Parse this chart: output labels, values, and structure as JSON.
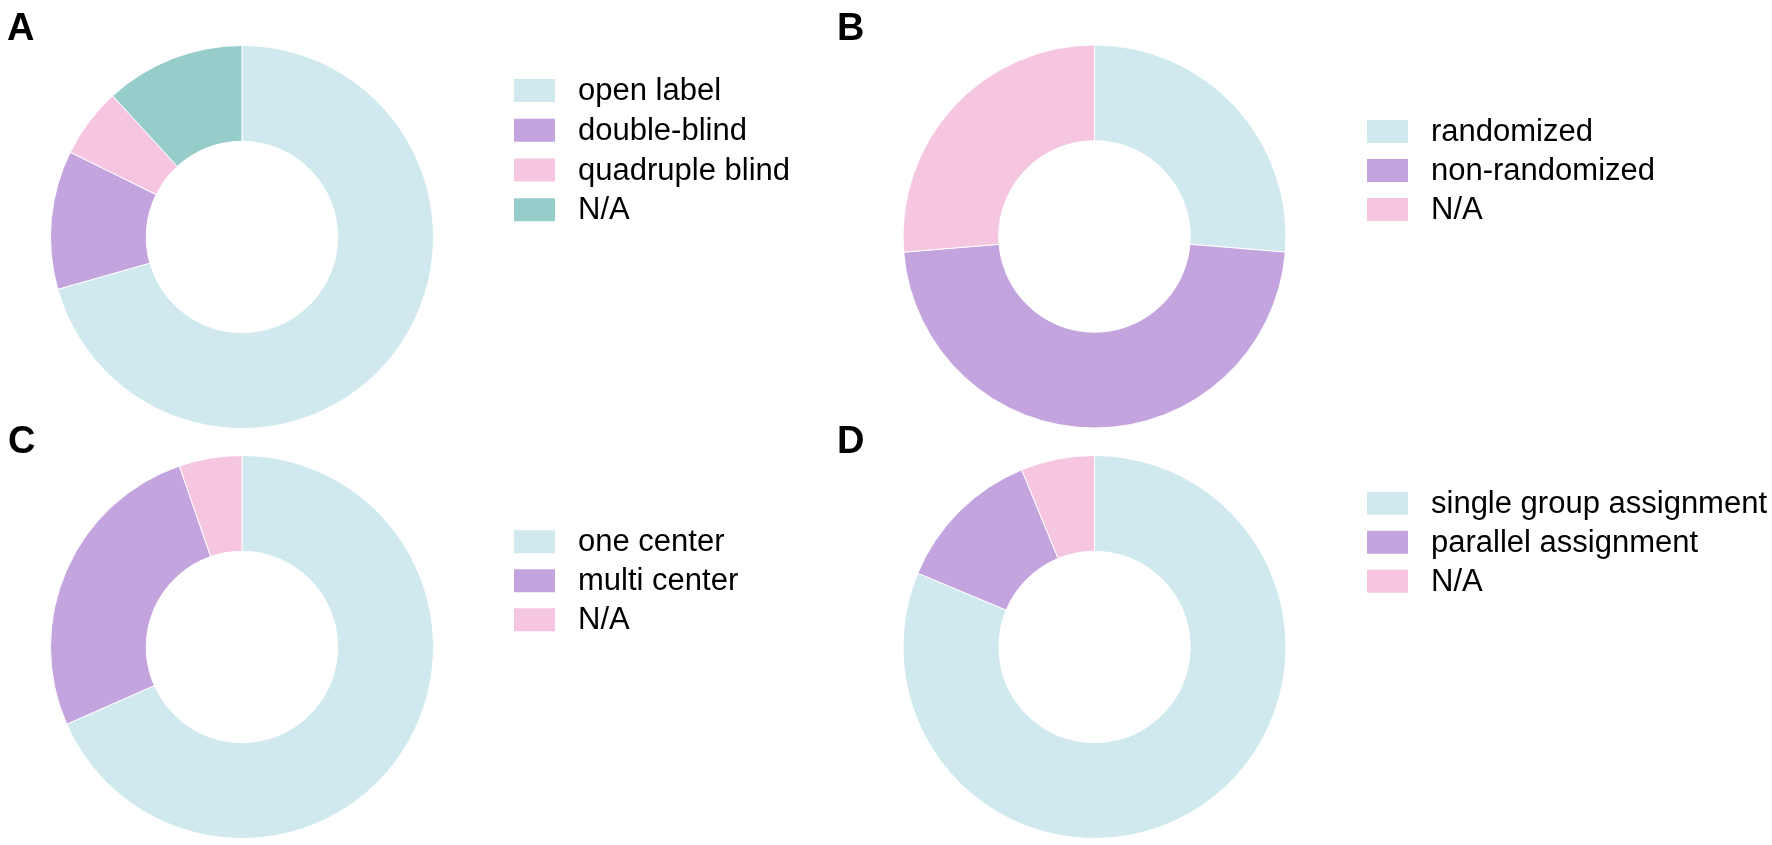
{
  "chart_data": [
    {
      "type": "donut",
      "title": "A",
      "categories": [
        "open label",
        "double-blind",
        "quadruple blind",
        "N/A"
      ],
      "values": [
        70.6,
        11.7,
        5.9,
        11.8
      ],
      "colors": [
        "#cfe9ef",
        "#c3a4de",
        "#f6c6e1",
        "#96cdca"
      ],
      "legend": "right"
    },
    {
      "type": "donut",
      "title": "B",
      "categories": [
        "randomized",
        "non-randomized",
        "N/A"
      ],
      "values": [
        26.3,
        47.4,
        26.3
      ],
      "colors": [
        "#cfe9ef",
        "#c3a4de",
        "#f6c6e1"
      ],
      "legend": "right"
    },
    {
      "type": "donut",
      "title": "C",
      "categories": [
        "one center",
        "multi center",
        "N/A"
      ],
      "values": [
        68.4,
        26.3,
        5.3
      ],
      "colors": [
        "#cfe9ef",
        "#c3a4de",
        "#f6c6e1"
      ],
      "legend": "right"
    },
    {
      "type": "donut",
      "title": "D",
      "categories": [
        "single group assignment",
        "parallel assignment",
        "N/A"
      ],
      "values": [
        81.3,
        12.5,
        6.2
      ],
      "colors": [
        "#cfe9ef",
        "#c3a4de",
        "#f6c6e1"
      ],
      "legend": "right"
    }
  ]
}
